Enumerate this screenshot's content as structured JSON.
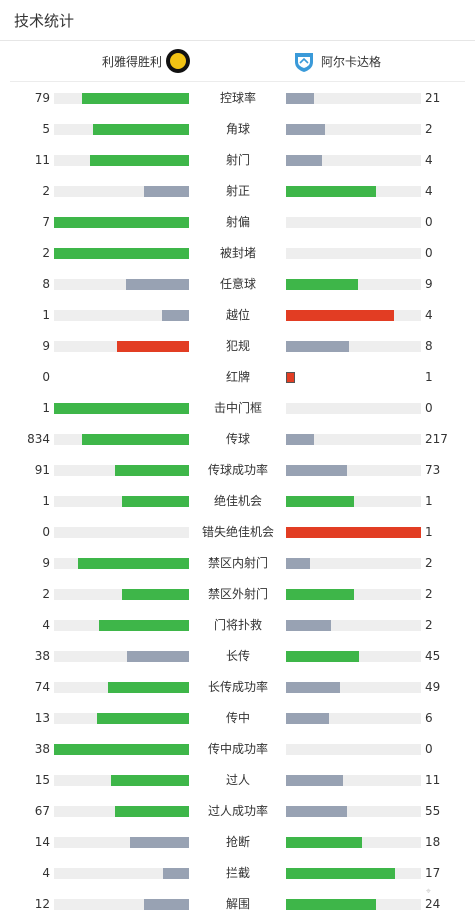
{
  "header": {
    "title": "技术统计"
  },
  "teams": {
    "home": "利雅得胜利",
    "away": "阿尔卡达格"
  },
  "colors": {
    "green": "#3eb649",
    "gray": "#98a2b3",
    "red": "#e23d23",
    "track": "#eeeeee"
  },
  "stats": [
    {
      "label": "控球率",
      "home": "79",
      "away": "21",
      "home_pct": 79,
      "away_pct": 21,
      "home_color": "green",
      "away_color": "gray"
    },
    {
      "label": "角球",
      "home": "5",
      "away": "2",
      "home_pct": 71,
      "away_pct": 29,
      "home_color": "green",
      "away_color": "gray"
    },
    {
      "label": "射门",
      "home": "11",
      "away": "4",
      "home_pct": 73,
      "away_pct": 27,
      "home_color": "green",
      "away_color": "gray"
    },
    {
      "label": "射正",
      "home": "2",
      "away": "4",
      "home_pct": 33,
      "away_pct": 67,
      "home_color": "gray",
      "away_color": "green"
    },
    {
      "label": "射偏",
      "home": "7",
      "away": "0",
      "home_pct": 100,
      "away_pct": 0,
      "home_color": "green",
      "away_color": "gray"
    },
    {
      "label": "被封堵",
      "home": "2",
      "away": "0",
      "home_pct": 100,
      "away_pct": 0,
      "home_color": "green",
      "away_color": "gray"
    },
    {
      "label": "任意球",
      "home": "8",
      "away": "9",
      "home_pct": 47,
      "away_pct": 53,
      "home_color": "gray",
      "away_color": "green"
    },
    {
      "label": "越位",
      "home": "1",
      "away": "4",
      "home_pct": 20,
      "away_pct": 80,
      "home_color": "gray",
      "away_color": "red"
    },
    {
      "label": "犯规",
      "home": "9",
      "away": "8",
      "home_pct": 53,
      "away_pct": 47,
      "home_color": "red",
      "away_color": "gray"
    },
    {
      "label": "红牌",
      "home": "0",
      "away": "1",
      "home_pct": 0,
      "away_pct": 0,
      "home_color": "gray",
      "away_color": "red",
      "away_marker": true
    },
    {
      "label": "击中门框",
      "home": "1",
      "away": "0",
      "home_pct": 100,
      "away_pct": 0,
      "home_color": "green",
      "away_color": "gray"
    },
    {
      "label": "传球",
      "home": "834",
      "away": "217",
      "home_pct": 79,
      "away_pct": 21,
      "home_color": "green",
      "away_color": "gray"
    },
    {
      "label": "传球成功率",
      "home": "91",
      "away": "73",
      "home_pct": 55,
      "away_pct": 45,
      "home_color": "green",
      "away_color": "gray"
    },
    {
      "label": "绝佳机会",
      "home": "1",
      "away": "1",
      "home_pct": 50,
      "away_pct": 50,
      "home_color": "green",
      "away_color": "green"
    },
    {
      "label": "错失绝佳机会",
      "home": "0",
      "away": "1",
      "home_pct": 0,
      "away_pct": 100,
      "home_color": "gray",
      "away_color": "red"
    },
    {
      "label": "禁区内射门",
      "home": "9",
      "away": "2",
      "home_pct": 82,
      "away_pct": 18,
      "home_color": "green",
      "away_color": "gray"
    },
    {
      "label": "禁区外射门",
      "home": "2",
      "away": "2",
      "home_pct": 50,
      "away_pct": 50,
      "home_color": "green",
      "away_color": "green"
    },
    {
      "label": "门将扑救",
      "home": "4",
      "away": "2",
      "home_pct": 67,
      "away_pct": 33,
      "home_color": "green",
      "away_color": "gray"
    },
    {
      "label": "长传",
      "home": "38",
      "away": "45",
      "home_pct": 46,
      "away_pct": 54,
      "home_color": "gray",
      "away_color": "green"
    },
    {
      "label": "长传成功率",
      "home": "74",
      "away": "49",
      "home_pct": 60,
      "away_pct": 40,
      "home_color": "green",
      "away_color": "gray"
    },
    {
      "label": "传中",
      "home": "13",
      "away": "6",
      "home_pct": 68,
      "away_pct": 32,
      "home_color": "green",
      "away_color": "gray"
    },
    {
      "label": "传中成功率",
      "home": "38",
      "away": "0",
      "home_pct": 100,
      "away_pct": 0,
      "home_color": "green",
      "away_color": "gray"
    },
    {
      "label": "过人",
      "home": "15",
      "away": "11",
      "home_pct": 58,
      "away_pct": 42,
      "home_color": "green",
      "away_color": "gray"
    },
    {
      "label": "过人成功率",
      "home": "67",
      "away": "55",
      "home_pct": 55,
      "away_pct": 45,
      "home_color": "green",
      "away_color": "gray"
    },
    {
      "label": "抢断",
      "home": "14",
      "away": "18",
      "home_pct": 44,
      "away_pct": 56,
      "home_color": "gray",
      "away_color": "green"
    },
    {
      "label": "拦截",
      "home": "4",
      "away": "17",
      "home_pct": 19,
      "away_pct": 81,
      "home_color": "gray",
      "away_color": "green"
    },
    {
      "label": "解围",
      "home": "12",
      "away": "24",
      "home_pct": 33,
      "away_pct": 67,
      "home_color": "gray",
      "away_color": "green"
    }
  ]
}
